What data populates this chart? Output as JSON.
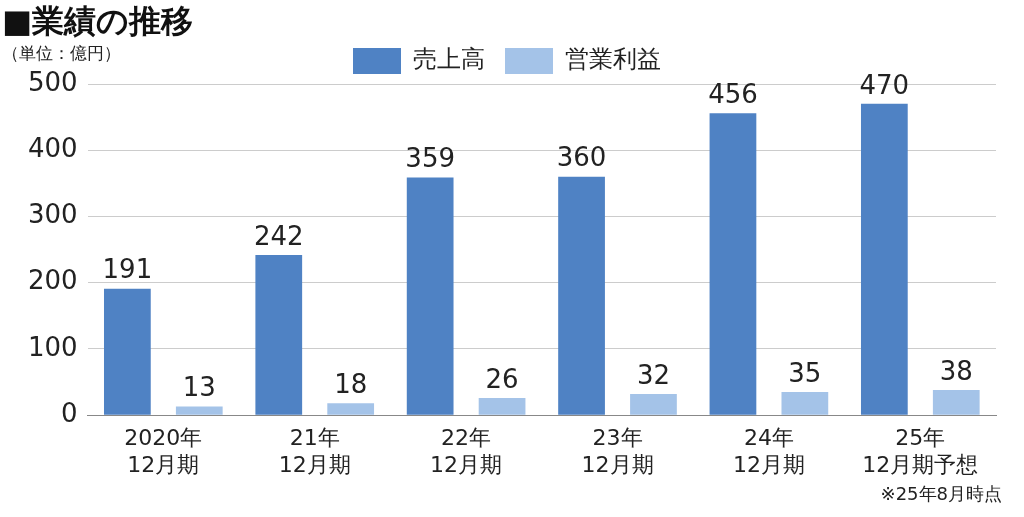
{
  "chart_data": {
    "type": "bar",
    "title": "■業績の推移",
    "subtitle": "（単位：億円）",
    "categories": [
      "2020年\n12月期",
      "21年\n12月期",
      "22年\n12月期",
      "23年\n12月期",
      "24年\n12月期",
      "25年\n12月期予想"
    ],
    "series": [
      {
        "name": "売上高",
        "color": "#4f82c4",
        "values": [
          191,
          242,
          359,
          360,
          456,
          470
        ]
      },
      {
        "name": "営業利益",
        "color": "#a4c3e8",
        "values": [
          13,
          18,
          26,
          32,
          35,
          38
        ]
      }
    ],
    "ylim": [
      0,
      500
    ],
    "yticks": [
      0,
      100,
      200,
      300,
      400,
      500
    ],
    "grid": "y",
    "legend": "top",
    "data_labels": true,
    "annotations": [
      "※25年8月時点"
    ]
  }
}
